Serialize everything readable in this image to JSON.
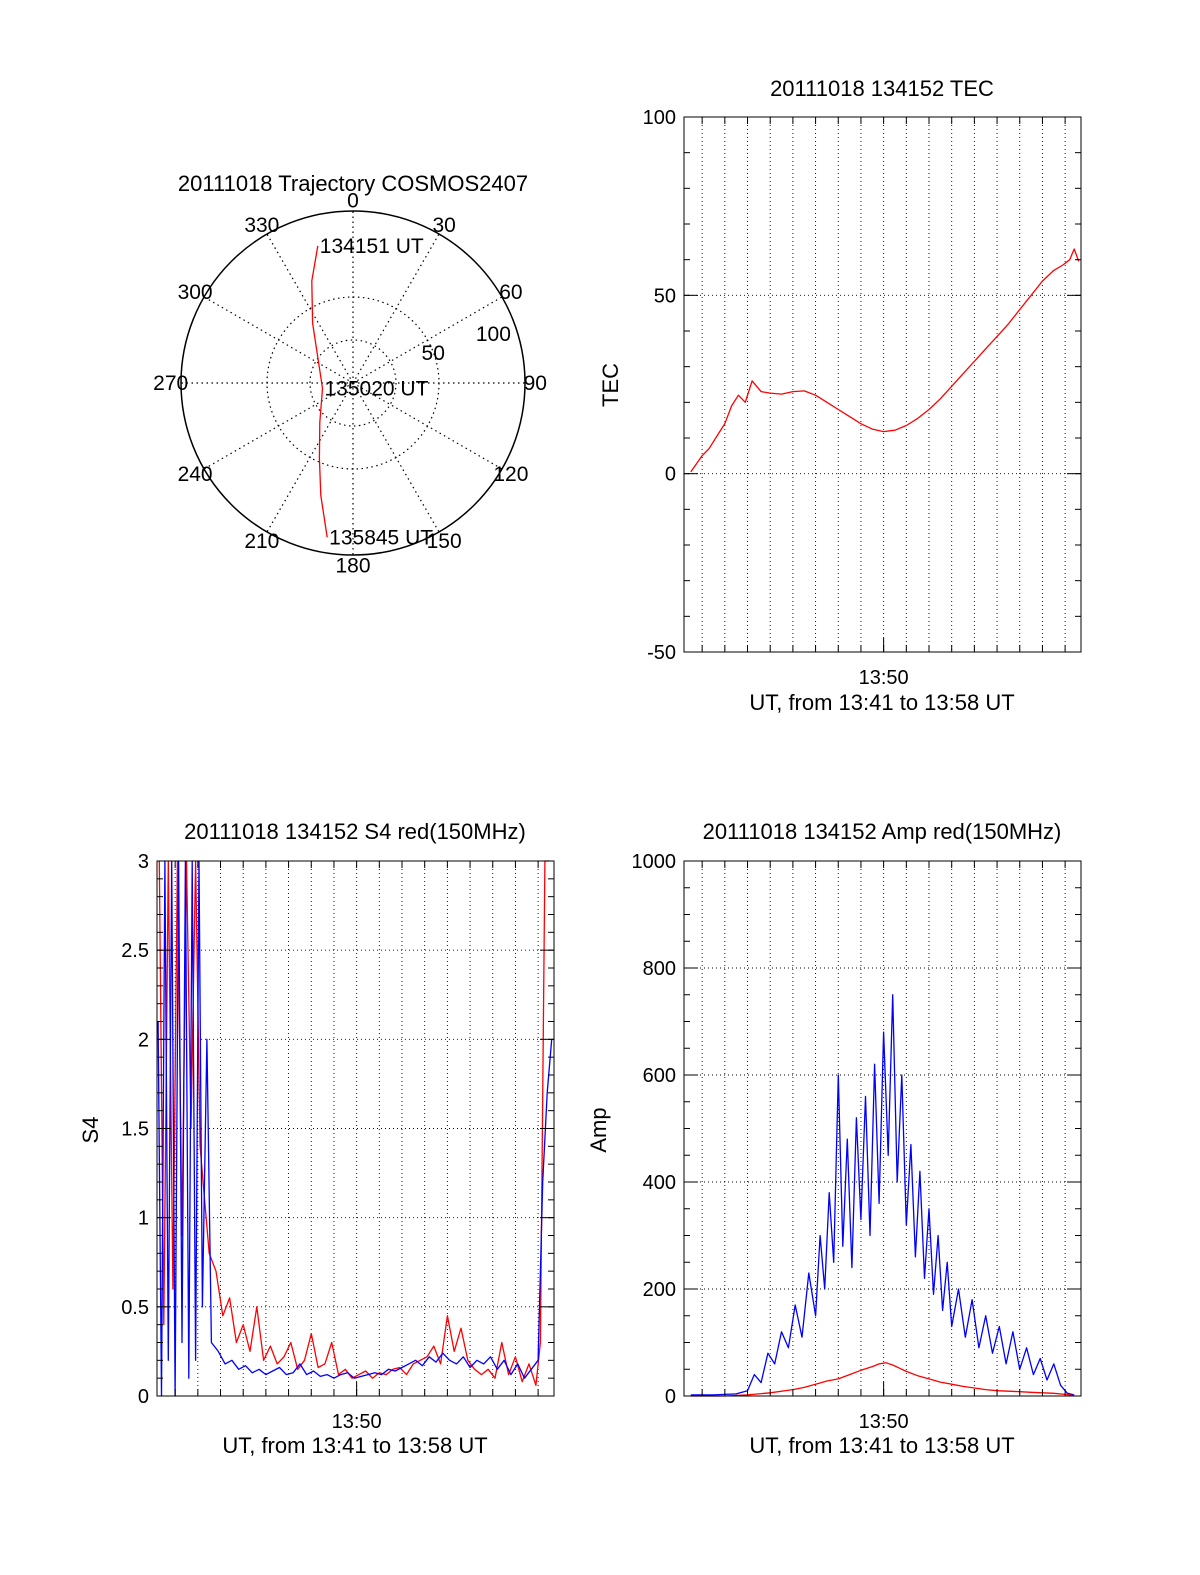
{
  "chart_data": [
    {
      "type": "polar",
      "title": "20111018 Trajectory COSMOS2407",
      "azimuth_labels": [
        "0",
        "30",
        "60",
        "90",
        "120",
        "150",
        "180",
        "210",
        "240",
        "270",
        "300",
        "330"
      ],
      "azimuth_degrees": [
        0,
        30,
        60,
        90,
        120,
        150,
        180,
        210,
        240,
        270,
        300,
        330
      ],
      "radial_labels": [
        "50",
        "100"
      ],
      "radial_values": [
        50,
        100
      ],
      "inner_ring_values": [
        25,
        50
      ],
      "rlim": [
        0,
        100
      ],
      "grid": true,
      "series": [
        {
          "color": "#ff0000",
          "points": [
            {
              "az": 345.6,
              "r": 82.3
            },
            {
              "az": 338,
              "r": 64
            },
            {
              "az": 326,
              "r": 42
            },
            {
              "az": 300,
              "r": 23
            },
            {
              "az": 260,
              "r": 18
            },
            {
              "az": 220,
              "r": 30
            },
            {
              "az": 204,
              "r": 48
            },
            {
              "az": 196,
              "r": 68
            },
            {
              "az": 189.5,
              "r": 91
            }
          ]
        }
      ],
      "annotations": [
        {
          "text": "134151 UT",
          "az": 345.6,
          "r": 82.3
        },
        {
          "text": "135020 UT",
          "az": 260,
          "r": 18
        },
        {
          "text": "135845 UT",
          "az": 189.5,
          "r": 91
        }
      ]
    },
    {
      "type": "line",
      "title": "20111018 134152 TEC",
      "xlabel": "UT, from 13:41 to 13:58 UT",
      "ylabel": "TEC",
      "ylim": [
        -50,
        100
      ],
      "yticks": [
        "-50",
        "0",
        "50",
        "100"
      ],
      "ytick_values": [
        -50,
        0,
        50,
        100
      ],
      "xticks": [
        "13:50"
      ],
      "xtick_values": [
        50
      ],
      "xlim": [
        41.2,
        58.7
      ],
      "grid": true,
      "series": [
        {
          "color": "#ff0000",
          "x": [
            41.5,
            42.0,
            42.3,
            42.7,
            43.0,
            43.3,
            43.6,
            43.9,
            44.2,
            44.6,
            45.0,
            45.5,
            46.0,
            46.5,
            47.0,
            47.5,
            48.0,
            48.5,
            49.0,
            49.5,
            50.0,
            50.5,
            51.0,
            51.5,
            52.0,
            52.5,
            53.0,
            53.5,
            54.0,
            54.5,
            55.0,
            55.5,
            56.0,
            56.5,
            57.0,
            57.5,
            57.9,
            58.2,
            58.4,
            58.6
          ],
          "y": [
            0.5,
            5,
            7,
            11,
            14,
            19,
            22,
            20,
            26,
            23,
            22.6,
            22.3,
            23,
            23.2,
            22,
            20,
            18,
            16,
            14,
            12.5,
            11.8,
            12.2,
            13.5,
            15.5,
            18,
            21,
            24.5,
            28,
            31.5,
            35,
            38.5,
            42,
            46,
            50,
            54,
            57,
            58.5,
            60,
            63,
            59.5
          ]
        }
      ]
    },
    {
      "type": "line",
      "title": "20111018 134152 S4 red(150MHz)",
      "xlabel": "UT, from 13:41 to 13:58 UT",
      "ylabel": "S4",
      "ylim": [
        0,
        3
      ],
      "yticks": [
        "0",
        "0.5",
        "1",
        "1.5",
        "2",
        "2.5",
        "3"
      ],
      "ytick_values": [
        0,
        0.5,
        1,
        1.5,
        2,
        2.5,
        3
      ],
      "xticks": [
        "13:50"
      ],
      "xtick_values": [
        50
      ],
      "xlim": [
        41.2,
        58.7
      ],
      "grid": true,
      "series": [
        {
          "color": "#ff0000",
          "x": [
            41.3,
            41.5,
            41.7,
            41.9,
            42.1,
            42.3,
            42.5,
            42.7,
            42.9,
            43.1,
            43.3,
            43.5,
            43.8,
            44.1,
            44.4,
            44.7,
            45.0,
            45.3,
            45.6,
            45.9,
            46.2,
            46.5,
            46.8,
            47.1,
            47.4,
            47.7,
            48.0,
            48.3,
            48.6,
            48.9,
            49.2,
            49.5,
            49.8,
            50.1,
            50.4,
            50.7,
            51.0,
            51.3,
            51.6,
            51.9,
            52.2,
            52.5,
            52.8,
            53.1,
            53.4,
            53.7,
            54.0,
            54.3,
            54.6,
            54.9,
            55.2,
            55.5,
            55.8,
            56.1,
            56.4,
            56.7,
            57.0,
            57.3,
            57.6,
            57.9,
            58.1,
            58.3,
            58.5
          ],
          "y": [
            3,
            0.4,
            3,
            0.6,
            3,
            0.9,
            3,
            1.5,
            3,
            1.4,
            1.1,
            0.8,
            0.7,
            0.45,
            0.55,
            0.3,
            0.4,
            0.25,
            0.5,
            0.2,
            0.28,
            0.18,
            0.22,
            0.3,
            0.15,
            0.2,
            0.35,
            0.16,
            0.18,
            0.3,
            0.12,
            0.15,
            0.1,
            0.12,
            0.14,
            0.1,
            0.13,
            0.12,
            0.15,
            0.16,
            0.12,
            0.18,
            0.2,
            0.22,
            0.28,
            0.18,
            0.45,
            0.25,
            0.38,
            0.2,
            0.15,
            0.12,
            0.15,
            0.1,
            0.3,
            0.12,
            0.22,
            0.08,
            0.18,
            0.06,
            0.3,
            3,
            3
          ]
        },
        {
          "color": "#0000ff",
          "x": [
            41.25,
            41.4,
            41.55,
            41.7,
            41.85,
            42.0,
            42.15,
            42.3,
            42.45,
            42.6,
            42.75,
            42.9,
            43.05,
            43.2,
            43.4,
            43.6,
            43.9,
            44.2,
            44.5,
            44.8,
            45.1,
            45.4,
            45.7,
            46.0,
            46.3,
            46.6,
            46.9,
            47.2,
            47.5,
            47.8,
            48.1,
            48.4,
            48.7,
            49.0,
            49.3,
            49.6,
            49.9,
            50.2,
            50.5,
            50.8,
            51.1,
            51.4,
            51.7,
            52.0,
            52.3,
            52.6,
            52.9,
            53.2,
            53.5,
            53.8,
            54.1,
            54.4,
            54.7,
            55.0,
            55.3,
            55.6,
            55.9,
            56.2,
            56.5,
            56.8,
            57.1,
            57.4,
            57.7,
            58.0,
            58.2,
            58.4,
            58.6
          ],
          "y": [
            2.1,
            0,
            3,
            0.2,
            3,
            0,
            3,
            0.3,
            3,
            0.1,
            3,
            0.2,
            3,
            0.5,
            2,
            0.3,
            0.25,
            0.18,
            0.2,
            0.15,
            0.17,
            0.13,
            0.15,
            0.12,
            0.14,
            0.16,
            0.12,
            0.13,
            0.18,
            0.12,
            0.14,
            0.11,
            0.12,
            0.1,
            0.12,
            0.13,
            0.1,
            0.11,
            0.12,
            0.13,
            0.12,
            0.15,
            0.14,
            0.16,
            0.18,
            0.2,
            0.17,
            0.22,
            0.19,
            0.24,
            0.2,
            0.18,
            0.22,
            0.16,
            0.2,
            0.18,
            0.22,
            0.15,
            0.2,
            0.12,
            0.18,
            0.1,
            0.15,
            0.2,
            1.2,
            1.7,
            2.0
          ]
        }
      ]
    },
    {
      "type": "line",
      "title": "20111018 134152 Amp red(150MHz)",
      "xlabel": "UT, from 13:41 to 13:58 UT",
      "ylabel": "Amp",
      "ylim": [
        0,
        1000
      ],
      "yticks": [
        "0",
        "200",
        "400",
        "600",
        "800",
        "1000"
      ],
      "ytick_values": [
        0,
        200,
        400,
        600,
        800,
        1000
      ],
      "xticks": [
        "13:50"
      ],
      "xtick_values": [
        50
      ],
      "xlim": [
        41.2,
        58.7
      ],
      "grid": true,
      "series": [
        {
          "color": "#0000ff",
          "x": [
            41.5,
            42.5,
            43.5,
            44.0,
            44.3,
            44.6,
            44.9,
            45.2,
            45.5,
            45.8,
            46.1,
            46.4,
            46.7,
            47.0,
            47.2,
            47.4,
            47.6,
            47.8,
            48.0,
            48.2,
            48.4,
            48.6,
            48.8,
            49.0,
            49.2,
            49.4,
            49.6,
            49.8,
            50.0,
            50.2,
            50.4,
            50.6,
            50.8,
            51.0,
            51.2,
            51.4,
            51.6,
            51.8,
            52.0,
            52.2,
            52.4,
            52.6,
            52.8,
            53.0,
            53.3,
            53.6,
            53.9,
            54.2,
            54.5,
            54.8,
            55.1,
            55.4,
            55.7,
            56.0,
            56.3,
            56.6,
            56.9,
            57.2,
            57.5,
            57.8,
            58.1,
            58.4
          ],
          "y": [
            2,
            2,
            4,
            10,
            40,
            25,
            80,
            60,
            120,
            90,
            170,
            110,
            230,
            150,
            300,
            200,
            380,
            250,
            600,
            280,
            480,
            240,
            520,
            330,
            560,
            300,
            620,
            360,
            680,
            450,
            750,
            400,
            600,
            320,
            470,
            260,
            420,
            220,
            350,
            190,
            300,
            160,
            250,
            130,
            200,
            110,
            180,
            90,
            150,
            80,
            130,
            60,
            120,
            50,
            90,
            40,
            70,
            30,
            60,
            20,
            5,
            2
          ]
        },
        {
          "color": "#ff0000",
          "x": [
            41.5,
            43.0,
            44.0,
            45.0,
            46.0,
            46.5,
            47.0,
            47.5,
            48.0,
            48.5,
            49.0,
            49.5,
            49.8,
            50.1,
            50.4,
            50.7,
            51.0,
            51.5,
            52.0,
            52.5,
            53.0,
            53.5,
            54.0,
            54.5,
            55.0,
            55.5,
            56.0,
            56.5,
            57.0,
            57.5,
            58.0,
            58.4
          ],
          "y": [
            0,
            0,
            2,
            6,
            12,
            16,
            22,
            28,
            32,
            40,
            48,
            55,
            60,
            62,
            58,
            52,
            46,
            38,
            32,
            26,
            22,
            18,
            15,
            12,
            10,
            9,
            8,
            7,
            6,
            5,
            3,
            1
          ]
        }
      ]
    }
  ]
}
